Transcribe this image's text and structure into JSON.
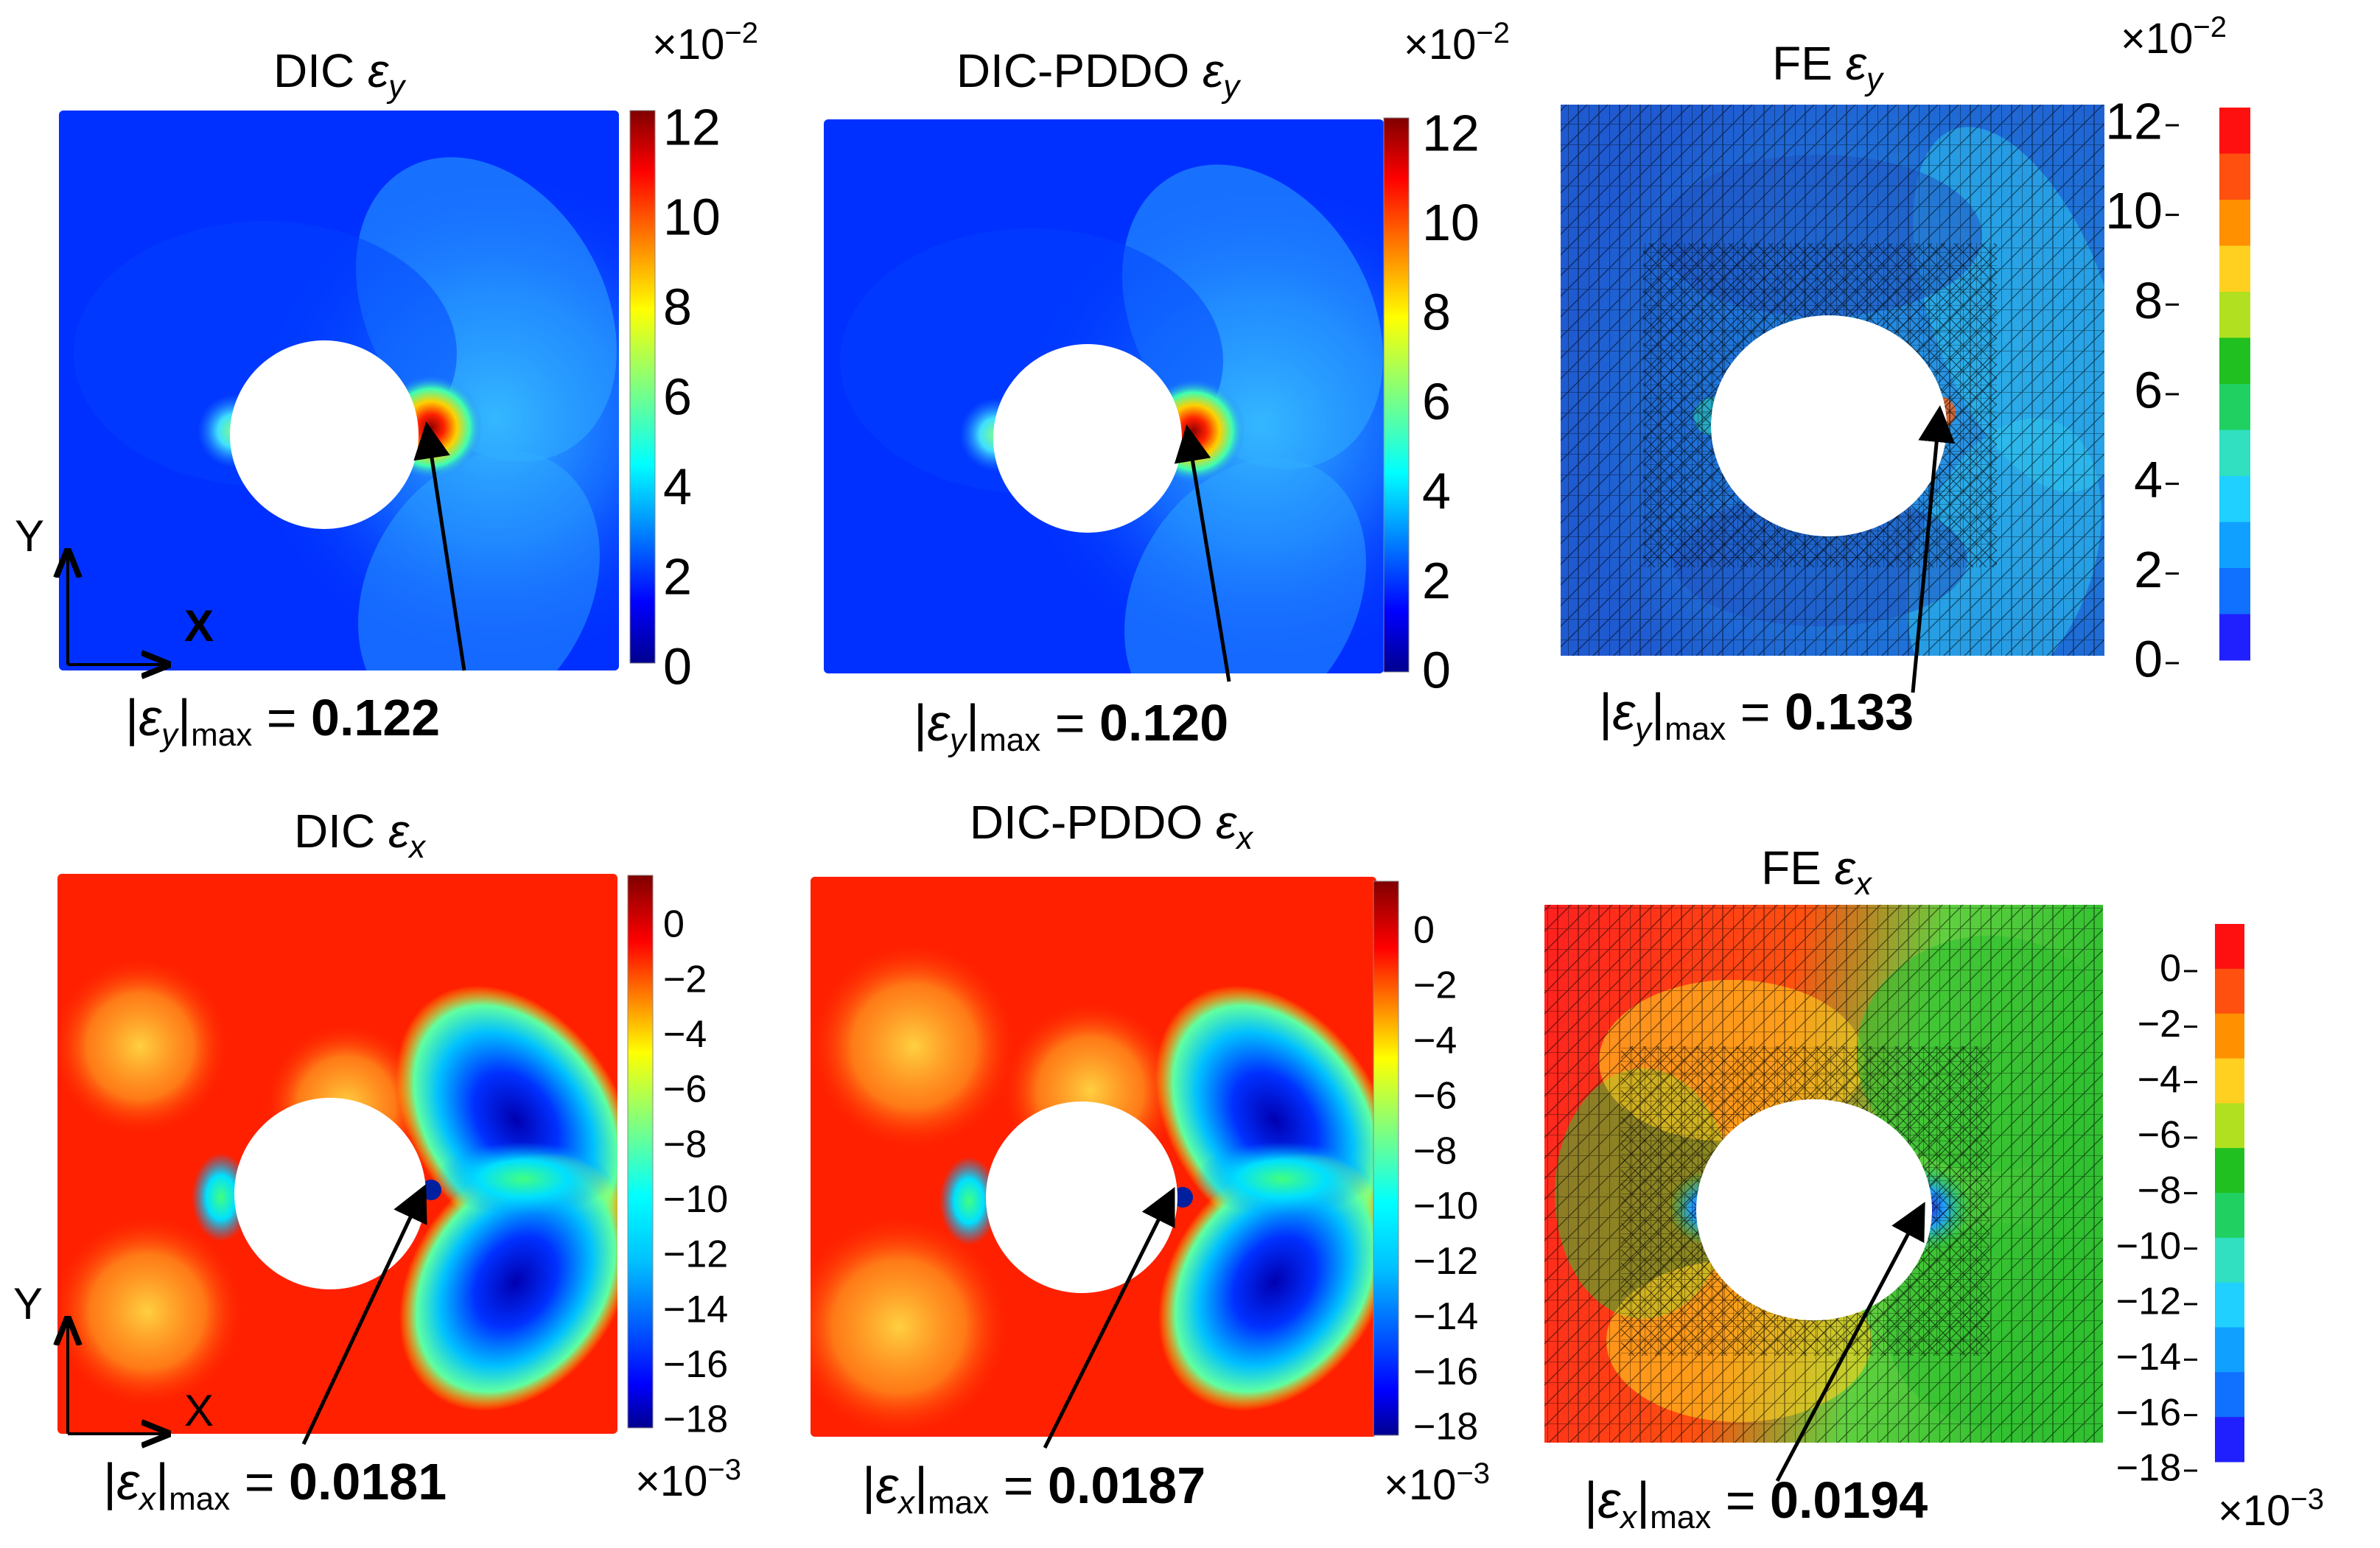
{
  "panels": [
    {
      "id": "dic-ey",
      "title_prefix": "DIC ",
      "symbol": "ε",
      "sub": "y",
      "method": "DIC",
      "max_label": "max",
      "max_value": "0.122",
      "colormap": "jet",
      "mesh": false,
      "hotspot": "right"
    },
    {
      "id": "pddo-ey",
      "title_prefix": "DIC-PDDO ",
      "symbol": "ε",
      "sub": "y",
      "method": "DIC-PDDO",
      "max_label": "max",
      "max_value": "0.120",
      "colormap": "jet",
      "mesh": false,
      "hotspot": "right"
    },
    {
      "id": "fe-ey",
      "title_prefix": "FE ",
      "symbol": "ε",
      "sub": "y",
      "method": "FE",
      "max_label": "max",
      "max_value": "0.133",
      "colormap": "discrete",
      "mesh": true,
      "hotspot": "right"
    },
    {
      "id": "dic-ex",
      "title_prefix": "DIC ",
      "symbol": "ε",
      "sub": "x",
      "method": "DIC",
      "max_label": "max",
      "max_value": "0.0181",
      "colormap": "jet",
      "mesh": false,
      "hotspot": "right"
    },
    {
      "id": "pddo-ex",
      "title_prefix": "DIC-PDDO ",
      "symbol": "ε",
      "sub": "x",
      "method": "DIC-PDDO",
      "max_label": "max",
      "max_value": "0.0187",
      "colormap": "jet",
      "mesh": false,
      "hotspot": "right"
    },
    {
      "id": "fe-ex",
      "title_prefix": "FE ",
      "symbol": "ε",
      "sub": "x",
      "method": "FE",
      "max_label": "max",
      "max_value": "0.0194",
      "colormap": "discrete",
      "mesh": true,
      "hotspot": "right"
    }
  ],
  "colorbars": [
    {
      "id": "cb-ey-dic",
      "kind": "continuous",
      "multiplier": "×10",
      "exponent": "−2",
      "ticks": [
        "12",
        "10",
        "8",
        "6",
        "4",
        "2",
        "0"
      ]
    },
    {
      "id": "cb-ey-pddo",
      "kind": "continuous",
      "multiplier": "×10",
      "exponent": "−2",
      "ticks": [
        "12",
        "10",
        "8",
        "6",
        "4",
        "2",
        "0"
      ]
    },
    {
      "id": "cb-ey-fe",
      "kind": "discrete",
      "multiplier": "×10",
      "exponent": "−2",
      "ticks": [
        "12",
        "10",
        "8",
        "6",
        "4",
        "2",
        "0"
      ]
    },
    {
      "id": "cb-ex-dic",
      "kind": "continuous",
      "multiplier": "×10",
      "exponent": "−3",
      "ticks": [
        "0",
        "−2",
        "−4",
        "−6",
        "−8",
        "−10",
        "−12",
        "−14",
        "−16",
        "−18"
      ]
    },
    {
      "id": "cb-ex-pddo",
      "kind": "continuous",
      "multiplier": "×10",
      "exponent": "−3",
      "ticks": [
        "0",
        "−2",
        "−4",
        "−6",
        "−8",
        "−10",
        "−12",
        "−14",
        "−16",
        "−18"
      ]
    },
    {
      "id": "cb-ex-fe",
      "kind": "discrete",
      "multiplier": "×10",
      "exponent": "−3",
      "ticks": [
        "0",
        "−2",
        "−4",
        "−6",
        "−8",
        "−10",
        "−12",
        "−14",
        "−16",
        "−18"
      ]
    }
  ],
  "axes_labels": {
    "y": "Y",
    "x": "X"
  },
  "colors": {
    "jet": [
      "#00008f",
      "#0000ff",
      "#0070ff",
      "#00dfff",
      "#4fffaf",
      "#bfff3f",
      "#ffdf00",
      "#ff7000",
      "#ff0000",
      "#8f0000"
    ],
    "discrete": [
      "#2020ff",
      "#1070ff",
      "#10a0ff",
      "#20d0ff",
      "#30e0c0",
      "#20d060",
      "#20c020",
      "#b0e020",
      "#ffd020",
      "#ff9000",
      "#ff5010",
      "#ff1010"
    ]
  }
}
